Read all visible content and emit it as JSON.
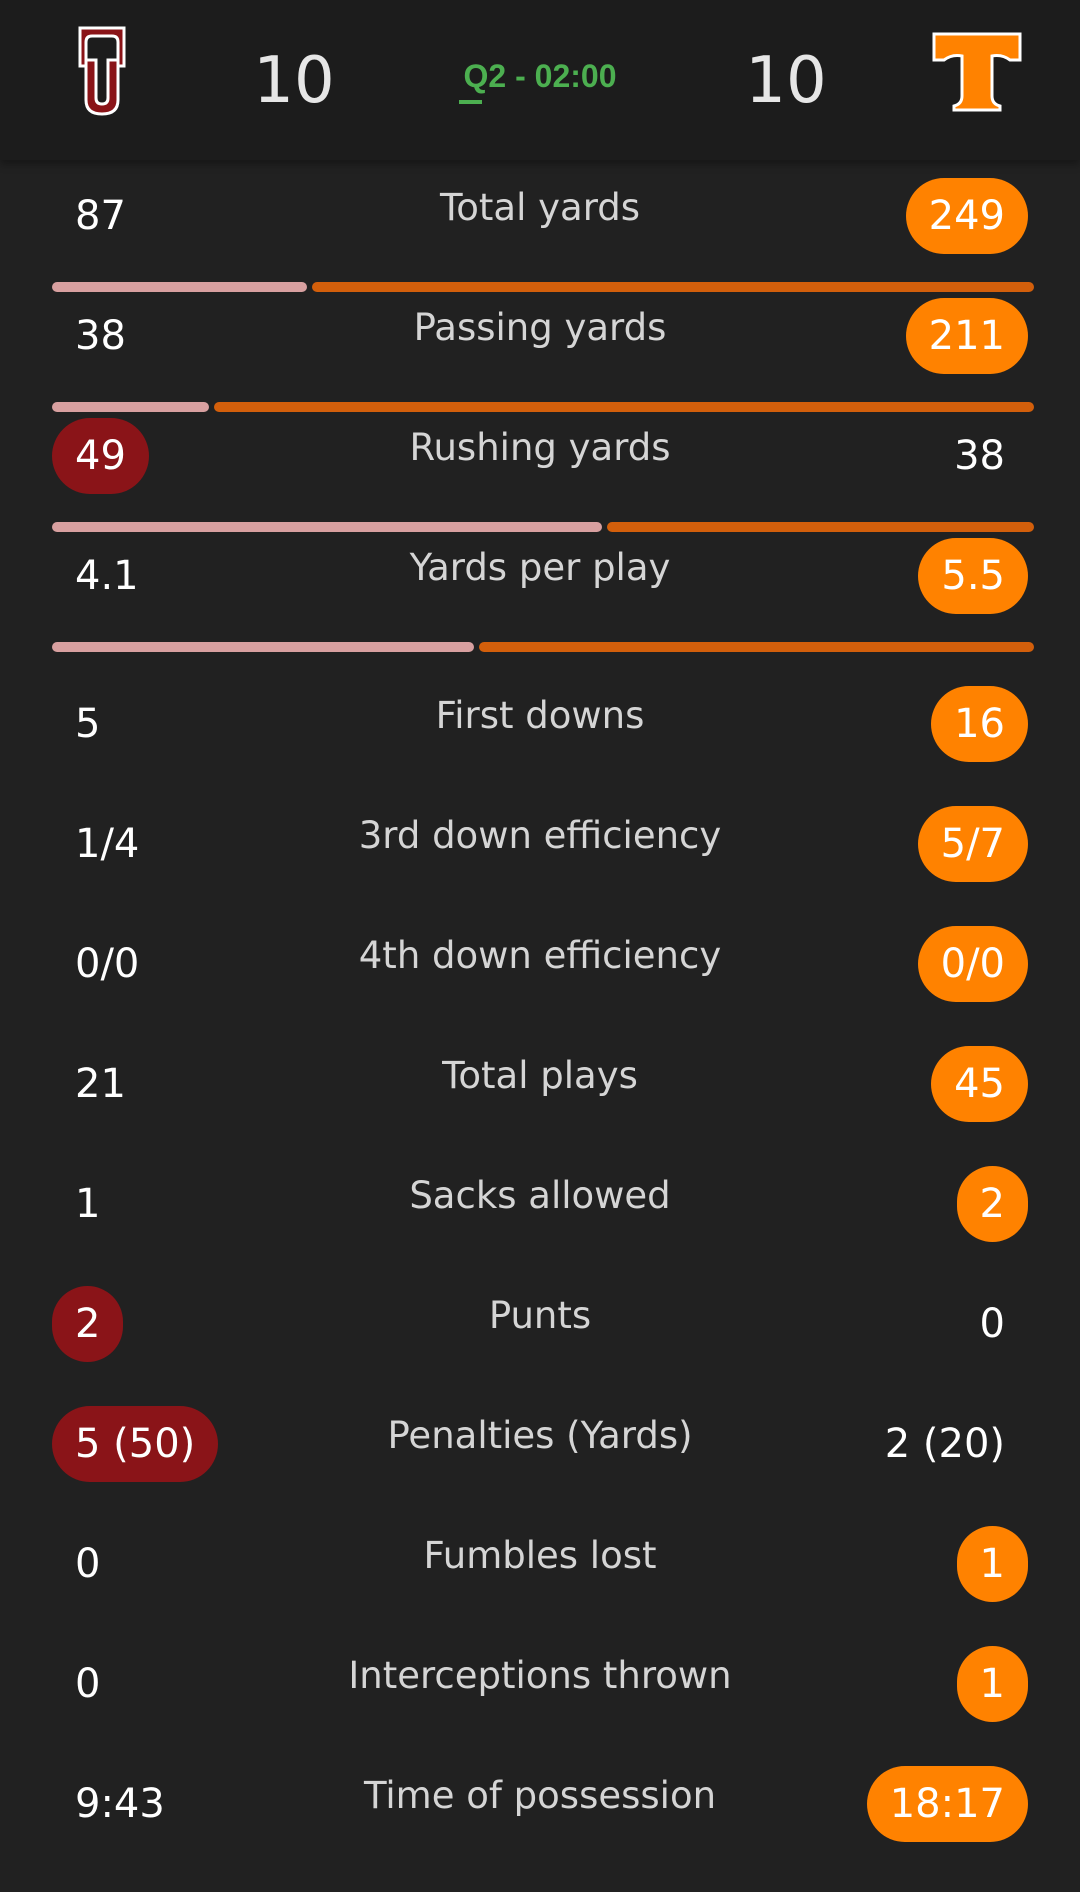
{
  "header": {
    "home_score": "10",
    "clock": "Q2 - 02:00",
    "away_score": "10",
    "home_logo": "ou-logo",
    "away_logo": "tennessee-t-logo"
  },
  "colors": {
    "home": "#8a1418",
    "away": "#ff8200",
    "clock": "#4caf50",
    "bar_home": "#d8a0a0",
    "bar_away": "#d35f0b"
  },
  "stats": [
    {
      "label": "Total yards",
      "home": "87",
      "away": "249",
      "leader": "away",
      "bar": true,
      "home_share": 0.26
    },
    {
      "label": "Passing yards",
      "home": "38",
      "away": "211",
      "leader": "away",
      "bar": true,
      "home_share": 0.16
    },
    {
      "label": "Rushing yards",
      "home": "49",
      "away": "38",
      "leader": "home",
      "bar": true,
      "home_share": 0.56
    },
    {
      "label": "Yards per play",
      "home": "4.1",
      "away": "5.5",
      "leader": "away",
      "bar": true,
      "home_share": 0.43
    },
    {
      "label": "First downs",
      "home": "5",
      "away": "16",
      "leader": "away",
      "bar": false
    },
    {
      "label": "3rd down efficiency",
      "home": "1/4",
      "away": "5/7",
      "leader": "away",
      "bar": false
    },
    {
      "label": "4th down efficiency",
      "home": "0/0",
      "away": "0/0",
      "leader": "away",
      "bar": false
    },
    {
      "label": "Total plays",
      "home": "21",
      "away": "45",
      "leader": "away",
      "bar": false
    },
    {
      "label": "Sacks allowed",
      "home": "1",
      "away": "2",
      "leader": "away",
      "bar": false
    },
    {
      "label": "Punts",
      "home": "2",
      "away": "0",
      "leader": "home",
      "bar": false
    },
    {
      "label": "Penalties (Yards)",
      "home": "5 (50)",
      "away": "2 (20)",
      "leader": "home",
      "bar": false
    },
    {
      "label": "Fumbles lost",
      "home": "0",
      "away": "1",
      "leader": "away",
      "bar": false
    },
    {
      "label": "Interceptions thrown",
      "home": "0",
      "away": "1",
      "leader": "away",
      "bar": false
    },
    {
      "label": "Time of possession",
      "home": "9:43",
      "away": "18:17",
      "leader": "away",
      "bar": false
    }
  ]
}
